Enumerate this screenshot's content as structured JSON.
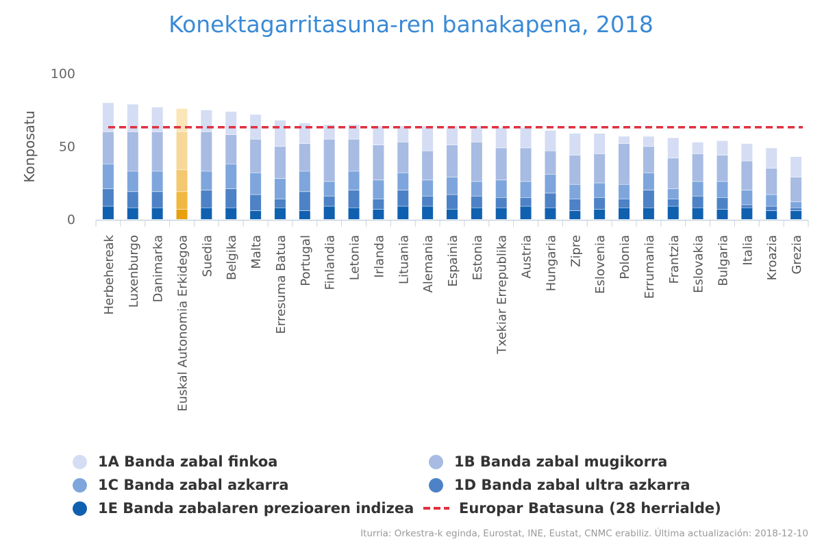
{
  "chart_data": {
    "type": "bar",
    "stacked": true,
    "title": "Konektagarritasuna-ren banakapena, 2018",
    "ylabel": "Konposatu",
    "xlabel": "",
    "ylim": [
      0,
      100
    ],
    "yticks": [
      0,
      50,
      100
    ],
    "grid": false,
    "legend_position": "bottom",
    "categories": [
      "Herbehereak",
      "Luxenburgo",
      "Danimarka",
      "Euskal Autonomia Erkidegoa",
      "Suedia",
      "Belgika",
      "Malta",
      "Erresuma Batua",
      "Portugal",
      "Finlandia",
      "Letonia",
      "Irlanda",
      "Lituania",
      "Alemania",
      "Espainia",
      "Estonia",
      "Txekiar Errepublika",
      "Austria",
      "Hungaria",
      "Zipre",
      "Eslovenia",
      "Polonia",
      "Errumania",
      "Frantzia",
      "Eslovakia",
      "Bulgaria",
      "Italia",
      "Kroazia",
      "Grezia"
    ],
    "highlight_category": "Euskal Autonomia Erkidegoa",
    "series": [
      {
        "name": "1E Banda zabalaren prezioaren indizea",
        "color": "#1060b0",
        "highlight_color": "#e8a010",
        "values": [
          9,
          8,
          8,
          7,
          8,
          8,
          6,
          8,
          6,
          9,
          8,
          7,
          9,
          9,
          7,
          8,
          8,
          9,
          8,
          6,
          7,
          8,
          8,
          9,
          8,
          7,
          8,
          6,
          6
        ]
      },
      {
        "name": "1D Banda zabal ultra azkarra",
        "color": "#4d82c6",
        "highlight_color": "#f0b840",
        "values": [
          12,
          11,
          11,
          12,
          12,
          13,
          11,
          6,
          13,
          7,
          12,
          7,
          11,
          7,
          10,
          8,
          7,
          6,
          10,
          8,
          8,
          6,
          12,
          5,
          8,
          8,
          2,
          3,
          2
        ]
      },
      {
        "name": "1C Banda zabal azkarra",
        "color": "#7ea6dc",
        "highlight_color": "#f4c870",
        "values": [
          17,
          14,
          14,
          15,
          13,
          17,
          15,
          14,
          14,
          10,
          13,
          13,
          12,
          11,
          12,
          10,
          12,
          11,
          13,
          10,
          10,
          10,
          12,
          7,
          10,
          11,
          10,
          8,
          4
        ]
      },
      {
        "name": "1B Banda zabal mugikorra",
        "color": "#a7bbe3",
        "highlight_color": "#f6d898",
        "values": [
          22,
          27,
          27,
          26,
          27,
          20,
          23,
          22,
          19,
          29,
          22,
          24,
          21,
          20,
          22,
          27,
          22,
          23,
          16,
          20,
          20,
          28,
          18,
          21,
          19,
          18,
          20,
          18,
          17
        ]
      },
      {
        "name": "1A Banda zabal finkoa",
        "color": "#d4ddf3",
        "highlight_color": "#fae6b8",
        "values": [
          20,
          19,
          17,
          16,
          15,
          16,
          17,
          18,
          14,
          10,
          10,
          13,
          11,
          17,
          13,
          11,
          14,
          14,
          14,
          15,
          14,
          5,
          7,
          14,
          8,
          10,
          12,
          14,
          14
        ]
      }
    ],
    "reference_lines": [
      {
        "name": "Europar Batasuna (28 herrialde)",
        "value": 63,
        "color": "#e03040",
        "style": "dashed"
      }
    ]
  },
  "legend": [
    {
      "label": "1A Banda zabal finkoa",
      "color": "#d4ddf3",
      "kind": "dot"
    },
    {
      "label": "1B Banda zabal mugikorra",
      "color": "#a7bbe3",
      "kind": "dot"
    },
    {
      "label": "1C Banda zabal azkarra",
      "color": "#7ea6dc",
      "kind": "dot"
    },
    {
      "label": "1D Banda zabal ultra azkarra",
      "color": "#4d82c6",
      "kind": "dot"
    },
    {
      "label": "1E Banda zabalaren prezioaren indizea",
      "color": "#1060b0",
      "kind": "dot"
    },
    {
      "label": "Europar Batasuna (28 herrialde)",
      "color": "#e03040",
      "kind": "dash"
    }
  ],
  "source": "Iturria: Orkestra-k eginda, Eurostat, INE, Eustat, CNMC erabiliz. Última actualización: 2018-12-10"
}
